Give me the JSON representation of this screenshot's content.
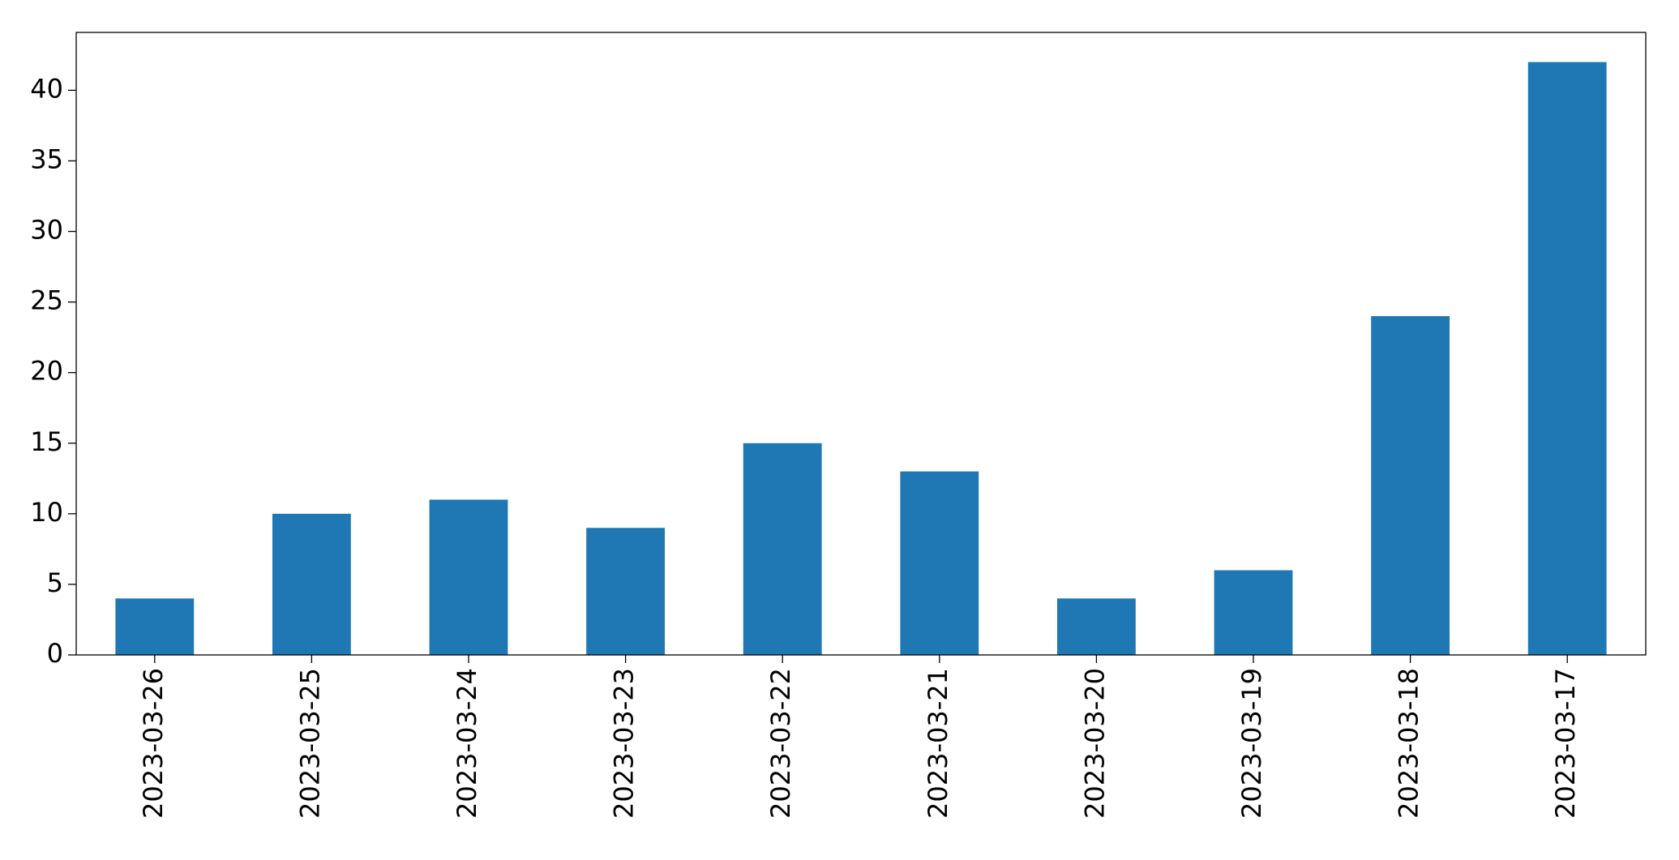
{
  "chart_data": {
    "type": "bar",
    "categories": [
      "2023-03-26",
      "2023-03-25",
      "2023-03-24",
      "2023-03-23",
      "2023-03-22",
      "2023-03-21",
      "2023-03-20",
      "2023-03-19",
      "2023-03-18",
      "2023-03-17"
    ],
    "values": [
      4,
      10,
      11,
      9,
      15,
      13,
      4,
      6,
      24,
      42
    ],
    "color": "#1f77b4",
    "ylim": [
      0,
      44.1
    ],
    "yticks": [
      0,
      5,
      10,
      15,
      20,
      25,
      30,
      35,
      40
    ],
    "grid": false
  }
}
